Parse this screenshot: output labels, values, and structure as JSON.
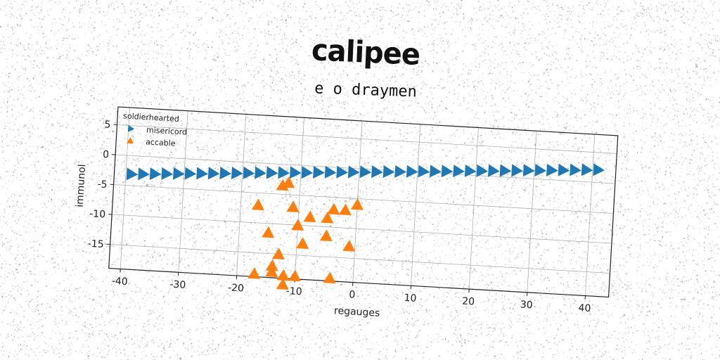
{
  "title": "calipee",
  "subtitle": "e o draymen",
  "chart_data": {
    "type": "scatter",
    "xlabel": "regauges",
    "ylabel": "immunol",
    "xlim": [
      -42,
      44
    ],
    "ylim": [
      -19,
      8
    ],
    "xticks": [
      -40,
      -30,
      -20,
      -10,
      0,
      10,
      20,
      30,
      40
    ],
    "yticks": [
      5,
      0,
      -5,
      -10,
      -15
    ],
    "grid": true,
    "legend": {
      "title": "soldierhearted",
      "placement": "top-left"
    },
    "series": [
      {
        "name": "misericord",
        "color": "#1f77b4",
        "marker": "triangle-right",
        "x": [
          -39,
          -37,
          -35,
          -33,
          -31,
          -29,
          -27,
          -25,
          -23,
          -21,
          -19,
          -17,
          -15,
          -13,
          -11,
          -9,
          -7,
          -5,
          -3,
          -1,
          1,
          3,
          5,
          7,
          9,
          11,
          13,
          15,
          17,
          19,
          21,
          23,
          25,
          27,
          29,
          31,
          33,
          35,
          37,
          39,
          41
        ],
        "y": [
          -3.1,
          -2.97,
          -2.84,
          -2.71,
          -2.58,
          -2.45,
          -2.32,
          -2.19,
          -2.06,
          -1.93,
          -1.8,
          -1.67,
          -1.54,
          -1.41,
          -1.28,
          -1.15,
          -1.02,
          -0.89,
          -0.76,
          -0.63,
          -0.5,
          -0.37,
          -0.24,
          -0.11,
          0.02,
          0.15,
          0.28,
          0.41,
          0.54,
          0.67,
          0.8,
          0.93,
          1.06,
          1.19,
          1.32,
          1.45,
          1.58,
          1.71,
          1.84,
          1.97,
          2.1
        ]
      },
      {
        "name": "accable",
        "color": "#ff7f0e",
        "marker": "triangle-up",
        "x": [
          -13,
          -12,
          -17,
          -11,
          -8,
          -10,
          -5,
          -4,
          -2,
          0,
          -15,
          -5,
          -9,
          -1,
          -13,
          -14,
          -14,
          -17,
          -10,
          -12,
          -4,
          -12
        ],
        "y": [
          -3.5,
          -3,
          -7,
          -7,
          -8.5,
          -10,
          -8.5,
          -7,
          -7,
          -6,
          -11.5,
          -11.5,
          -13,
          -13,
          -15,
          -17,
          -18,
          -18.5,
          -18.5,
          -18.5,
          -18.5,
          -20
        ]
      }
    ]
  }
}
